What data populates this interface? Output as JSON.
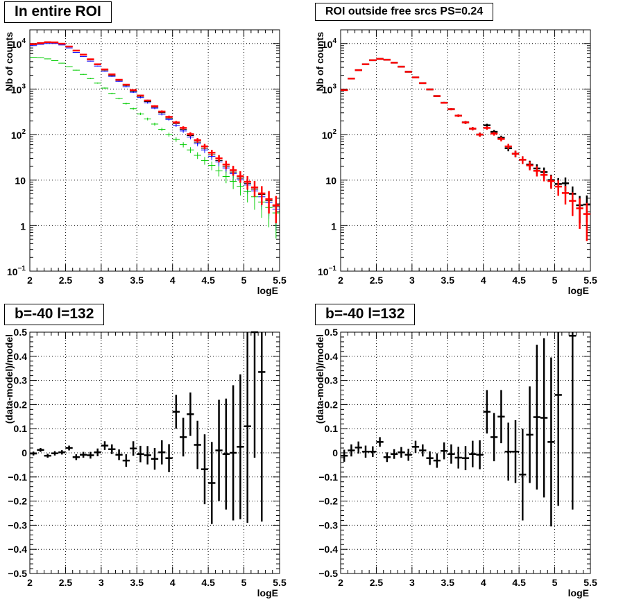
{
  "chart_data": [
    {
      "type": "scatter",
      "title": "In entire ROI",
      "xlabel": "logE",
      "ylabel": "Nb of counts",
      "xlim": [
        2,
        5.5
      ],
      "ylim": [
        0.1,
        20000
      ],
      "ylog": true,
      "grid": true,
      "xticks": [
        "2",
        "2.5",
        "3",
        "3.5",
        "4",
        "4.5",
        "5",
        "5.5"
      ],
      "yticks": [
        {
          "base": "10",
          "exp": "−1",
          "v": 0.1
        },
        {
          "base": "1",
          "exp": "",
          "v": 1
        },
        {
          "base": "10",
          "exp": "",
          "v": 10
        },
        {
          "base": "10",
          "exp": "2",
          "v": 100
        },
        {
          "base": "10",
          "exp": "3",
          "v": 1000
        },
        {
          "base": "10",
          "exp": "4",
          "v": 10000
        }
      ],
      "x": [
        2.05,
        2.15,
        2.25,
        2.35,
        2.45,
        2.55,
        2.65,
        2.75,
        2.85,
        2.95,
        3.05,
        3.15,
        3.25,
        3.35,
        3.45,
        3.55,
        3.65,
        3.75,
        3.85,
        3.95,
        4.05,
        4.15,
        4.25,
        4.35,
        4.45,
        4.55,
        4.65,
        4.75,
        4.85,
        4.95,
        5.05,
        5.15,
        5.25,
        5.35,
        5.45
      ],
      "series": [
        {
          "color": "#000000",
          "style": "thin",
          "values": [
            9500,
            10000,
            10500,
            10500,
            9800,
            8500,
            6900,
            5600,
            4400,
            3400,
            2600,
            2000,
            1550,
            1200,
            900,
            690,
            530,
            400,
            300,
            230,
            175,
            130,
            95,
            68,
            50,
            36,
            27,
            20,
            15,
            11,
            8.5,
            6.3,
            4.8,
            3.5,
            2.6
          ]
        },
        {
          "color": "#0000ff",
          "style": "thin",
          "values": [
            9000,
            9600,
            10000,
            10000,
            9300,
            8000,
            6400,
            5200,
            4100,
            3200,
            2450,
            1900,
            1480,
            1130,
            850,
            650,
            500,
            380,
            280,
            215,
            160,
            120,
            88,
            63,
            46,
            33,
            25,
            18.5,
            13.8,
            10.2,
            7.8,
            5.8,
            4.3,
            3.2,
            2.3
          ]
        },
        {
          "color": "#00cc00",
          "style": "thin",
          "values": [
            5000,
            4900,
            4600,
            4200,
            3700,
            3100,
            2600,
            2100,
            1700,
            1350,
            1050,
            800,
            620,
            480,
            370,
            285,
            220,
            170,
            130,
            100,
            78,
            60,
            46,
            35,
            27,
            21,
            16,
            12,
            9.4,
            7.3,
            5.6,
            4.3,
            3.3,
            2.5,
            1.9
          ]
        },
        {
          "color": "#ff0000",
          "style": "thick",
          "values": [
            9700,
            10200,
            10700,
            10600,
            9900,
            8600,
            7000,
            5700,
            4500,
            3500,
            2700,
            2100,
            1600,
            1250,
            950,
            720,
            560,
            420,
            320,
            245,
            185,
            140,
            102,
            75,
            55,
            40,
            30,
            22,
            16.5,
            12.2,
            9.2,
            6.9,
            5.1,
            3.8,
            2.8
          ]
        }
      ]
    },
    {
      "type": "scatter",
      "title": "ROI outside free srcs PS=0.24",
      "xlabel": "logE",
      "ylabel": "Nb of counts",
      "xlim": [
        2,
        5.5
      ],
      "ylim": [
        0.1,
        20000
      ],
      "ylog": true,
      "grid": true,
      "xticks": [
        "2",
        "2.5",
        "3",
        "3.5",
        "4",
        "4.5",
        "5",
        "5.5"
      ],
      "yticks": [
        {
          "base": "10",
          "exp": "−1",
          "v": 0.1
        },
        {
          "base": "1",
          "exp": "",
          "v": 1
        },
        {
          "base": "10",
          "exp": "",
          "v": 10
        },
        {
          "base": "10",
          "exp": "2",
          "v": 100
        },
        {
          "base": "10",
          "exp": "3",
          "v": 1000
        },
        {
          "base": "10",
          "exp": "4",
          "v": 10000
        }
      ],
      "x": [
        2.05,
        2.15,
        2.25,
        2.35,
        2.45,
        2.55,
        2.65,
        2.75,
        2.85,
        2.95,
        3.05,
        3.15,
        3.25,
        3.35,
        3.45,
        3.55,
        3.65,
        3.75,
        3.85,
        3.95,
        4.05,
        4.15,
        4.25,
        4.35,
        4.45,
        4.55,
        4.65,
        4.75,
        4.85,
        4.95,
        5.05,
        5.15,
        5.25,
        5.35,
        5.45
      ],
      "series": [
        {
          "color": "#000000",
          "style": "thick",
          "values": [
            950,
            1700,
            2600,
            3500,
            4300,
            4600,
            4400,
            3800,
            3100,
            2400,
            1800,
            1350,
            980,
            700,
            500,
            360,
            260,
            185,
            135,
            100,
            160,
            115,
            85,
            50,
            38,
            28,
            22,
            18,
            15,
            10,
            8.2,
            8.5,
            5,
            2.8,
            2.9
          ]
        },
        {
          "color": "#ff0000",
          "style": "thick",
          "values": [
            950,
            1700,
            2600,
            3500,
            4300,
            4600,
            4400,
            3800,
            3100,
            2400,
            1800,
            1350,
            980,
            700,
            500,
            360,
            260,
            185,
            135,
            100,
            140,
            105,
            80,
            55,
            38,
            28,
            21,
            16,
            13,
            9.5,
            7.2,
            5.2,
            3.5,
            2.4,
            1.8
          ]
        }
      ]
    },
    {
      "type": "scatter",
      "title": "b=-40 l=132",
      "xlabel": "logE",
      "ylabel": "(data-model)/model",
      "xlim": [
        2,
        5.5
      ],
      "ylim": [
        -0.5,
        0.5
      ],
      "grid": true,
      "xticks": [
        "2",
        "2.5",
        "3",
        "3.5",
        "4",
        "4.5",
        "5",
        "5.5"
      ],
      "yticks_labels": [
        "−0.5",
        "−0.4",
        "−0.3",
        "−0.2",
        "−0.1",
        "0",
        "0.1",
        "0.2",
        "0.3",
        "0.4",
        "0.5"
      ],
      "x": [
        2.05,
        2.15,
        2.25,
        2.35,
        2.45,
        2.55,
        2.65,
        2.75,
        2.85,
        2.95,
        3.05,
        3.15,
        3.25,
        3.35,
        3.45,
        3.55,
        3.65,
        3.75,
        3.85,
        3.95,
        4.05,
        4.15,
        4.25,
        4.35,
        4.45,
        4.55,
        4.65,
        4.75,
        4.85,
        4.95,
        5.05,
        5.15,
        5.25
      ],
      "values": [
        -0.003,
        0.012,
        -0.012,
        -0.002,
        0.002,
        0.02,
        -0.018,
        -0.008,
        -0.01,
        0.002,
        0.03,
        0.015,
        -0.008,
        -0.032,
        0.018,
        -0.005,
        -0.01,
        -0.025,
        0.002,
        -0.022,
        0.17,
        0.065,
        0.16,
        0.033,
        -0.068,
        -0.125,
        0.01,
        -0.005,
        0.0,
        0.025,
        0.11,
        0.5,
        0.335
      ],
      "errors": [
        0.008,
        0.008,
        0.008,
        0.009,
        0.009,
        0.01,
        0.012,
        0.012,
        0.014,
        0.016,
        0.018,
        0.02,
        0.022,
        0.026,
        0.03,
        0.034,
        0.038,
        0.045,
        0.05,
        0.058,
        0.07,
        0.08,
        0.09,
        0.1,
        0.145,
        0.17,
        0.21,
        0.23,
        0.28,
        0.3,
        0.4,
        0.52,
        0.62
      ]
    },
    {
      "type": "scatter",
      "title": "b=-40 l=132",
      "xlabel": "logE",
      "ylabel": "(data-model)/model",
      "xlim": [
        2,
        5.5
      ],
      "ylim": [
        -0.5,
        0.5
      ],
      "grid": true,
      "xticks": [
        "2",
        "2.5",
        "3",
        "3.5",
        "4",
        "4.5",
        "5",
        "5.5"
      ],
      "yticks_labels": [
        "−0.5",
        "−0.4",
        "−0.3",
        "−0.2",
        "−0.1",
        "0",
        "0.1",
        "0.2",
        "0.3",
        "0.4",
        "0.5"
      ],
      "x": [
        2.05,
        2.15,
        2.25,
        2.35,
        2.45,
        2.55,
        2.65,
        2.75,
        2.85,
        2.95,
        3.05,
        3.15,
        3.25,
        3.35,
        3.45,
        3.55,
        3.65,
        3.75,
        3.85,
        3.95,
        4.05,
        4.15,
        4.25,
        4.35,
        4.45,
        4.55,
        4.65,
        4.75,
        4.85,
        4.95,
        5.05,
        5.25
      ],
      "values": [
        -0.012,
        0.01,
        0.022,
        0.005,
        0.005,
        0.045,
        -0.018,
        -0.005,
        0.002,
        -0.008,
        0.025,
        0.01,
        -0.022,
        -0.032,
        0.008,
        -0.005,
        -0.02,
        -0.022,
        -0.005,
        -0.008,
        0.17,
        0.065,
        0.15,
        0.005,
        0.005,
        -0.09,
        0.075,
        0.148,
        0.145,
        0.045,
        0.24,
        0.485
      ],
      "errors": [
        0.025,
        0.025,
        0.025,
        0.025,
        0.022,
        0.02,
        0.02,
        0.02,
        0.022,
        0.025,
        0.025,
        0.025,
        0.028,
        0.03,
        0.035,
        0.04,
        0.045,
        0.05,
        0.055,
        0.06,
        0.09,
        0.1,
        0.11,
        0.12,
        0.13,
        0.19,
        0.2,
        0.3,
        0.33,
        0.35,
        0.46,
        0.72
      ]
    }
  ]
}
